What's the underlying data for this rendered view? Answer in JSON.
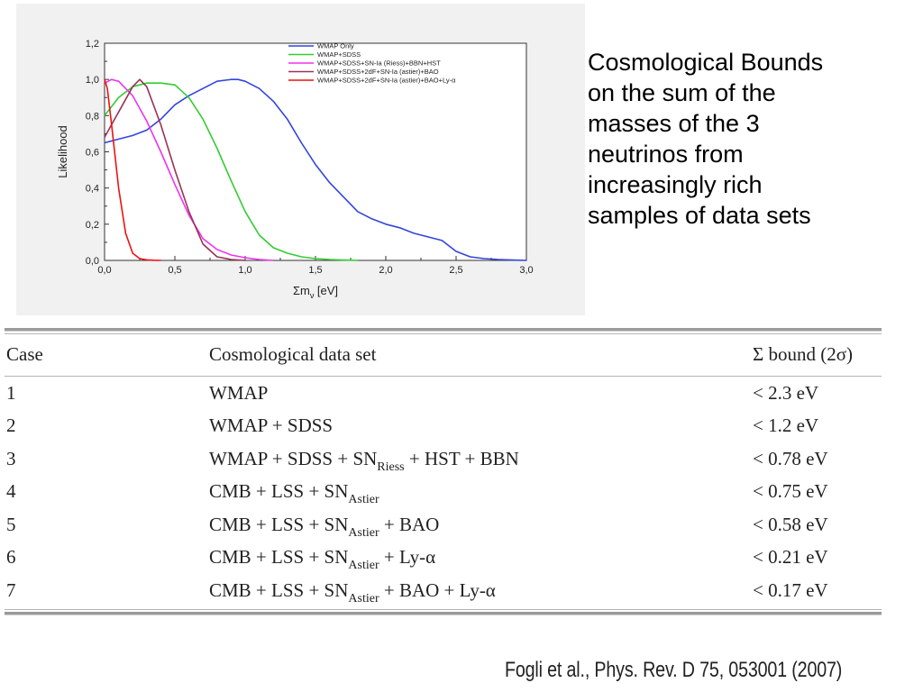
{
  "chart_data": {
    "type": "line",
    "title": "",
    "xlabel": "Σm",
    "xlabel_sub": "ν",
    "xlabel_unit": " [eV]",
    "ylabel": "Likelihood",
    "xlim": [
      0,
      3.0
    ],
    "ylim": [
      0,
      1.2
    ],
    "xticks": [
      "0,0",
      "0,5",
      "1,0",
      "1,5",
      "2,0",
      "2,5",
      "3,0"
    ],
    "xtick_values": [
      0,
      0.5,
      1.0,
      1.5,
      2.0,
      2.5,
      3.0
    ],
    "yticks": [
      "0,0",
      "0,2",
      "0,4",
      "0,6",
      "0,8",
      "1,0",
      "1,2"
    ],
    "ytick_values": [
      0,
      0.2,
      0.4,
      0.6,
      0.8,
      1.0,
      1.2
    ],
    "legend_position": "top-right",
    "grid": false,
    "series": [
      {
        "name": "WMAP Only",
        "color": "#3344dd",
        "x": [
          0,
          0.1,
          0.2,
          0.3,
          0.4,
          0.5,
          0.6,
          0.7,
          0.8,
          0.9,
          0.95,
          1.0,
          1.1,
          1.2,
          1.3,
          1.4,
          1.5,
          1.6,
          1.7,
          1.8,
          1.9,
          2.0,
          2.1,
          2.2,
          2.3,
          2.4,
          2.5,
          2.6,
          2.7,
          2.8,
          2.9,
          3.0
        ],
        "y": [
          0.65,
          0.67,
          0.69,
          0.72,
          0.78,
          0.86,
          0.91,
          0.95,
          0.99,
          1.0,
          1.0,
          0.99,
          0.95,
          0.88,
          0.78,
          0.65,
          0.53,
          0.43,
          0.35,
          0.27,
          0.23,
          0.2,
          0.18,
          0.15,
          0.13,
          0.11,
          0.05,
          0.02,
          0.01,
          0.005,
          0.002,
          0.0
        ]
      },
      {
        "name": "WMAP+SDSS",
        "color": "#33cc33",
        "x": [
          0,
          0.1,
          0.2,
          0.3,
          0.4,
          0.5,
          0.6,
          0.7,
          0.8,
          0.9,
          1.0,
          1.1,
          1.2,
          1.3,
          1.4,
          1.5,
          1.6,
          1.7,
          1.8
        ],
        "y": [
          0.8,
          0.9,
          0.96,
          0.98,
          0.98,
          0.97,
          0.9,
          0.78,
          0.62,
          0.44,
          0.27,
          0.14,
          0.07,
          0.04,
          0.02,
          0.01,
          0.005,
          0.002,
          0.0
        ]
      },
      {
        "name": "WMAP+SDSS+SN-Ia (Riess)+BBN+HST",
        "color": "#ee33ee",
        "x": [
          0,
          0.05,
          0.1,
          0.2,
          0.3,
          0.4,
          0.5,
          0.6,
          0.7,
          0.8,
          0.9,
          1.0,
          1.1,
          1.2
        ],
        "y": [
          0.98,
          1.0,
          0.99,
          0.91,
          0.77,
          0.6,
          0.42,
          0.25,
          0.12,
          0.06,
          0.03,
          0.015,
          0.005,
          0.0
        ]
      },
      {
        "name": "WMAP+SDSS+2dF+SN-Ia (astier)+BAO",
        "color": "#993355",
        "x": [
          0,
          0.1,
          0.2,
          0.25,
          0.3,
          0.4,
          0.5,
          0.6,
          0.7,
          0.8,
          0.9,
          1.0
        ],
        "y": [
          0.68,
          0.82,
          0.96,
          1.0,
          0.96,
          0.75,
          0.5,
          0.27,
          0.09,
          0.02,
          0.005,
          0.0
        ]
      },
      {
        "name": "WMAP+SDSS+2dF+SN-Ia (astier)+BAO+Ly-α",
        "color": "#ee1111",
        "x": [
          0,
          0.02,
          0.05,
          0.1,
          0.15,
          0.2,
          0.25,
          0.3,
          0.35,
          0.4
        ],
        "y": [
          1.0,
          0.95,
          0.75,
          0.4,
          0.15,
          0.04,
          0.01,
          0.003,
          0.001,
          0.0
        ]
      }
    ]
  },
  "caption": "Cosmological Bounds\non the sum of the\nmasses of the 3\nneutrinos from\nincreasingly rich\nsamples of data sets",
  "table": {
    "headers": [
      "Case",
      "Cosmological data set",
      "Σ bound (2σ)"
    ],
    "rows": [
      {
        "case": "1",
        "set": "WMAP",
        "bound": "< 2.3 eV"
      },
      {
        "case": "2",
        "set": "WMAP + SDSS",
        "bound": "< 1.2 eV"
      },
      {
        "case": "3",
        "set": "WMAP + SDSS + SN",
        "set_sub": "Riess",
        "set_post": " + HST + BBN",
        "bound": "< 0.78 eV"
      },
      {
        "case": "4",
        "set": "CMB + LSS + SN",
        "set_sub": "Astier",
        "set_post": "",
        "bound": "< 0.75 eV"
      },
      {
        "case": "5",
        "set": "CMB + LSS + SN",
        "set_sub": "Astier",
        "set_post": " + BAO",
        "bound": "< 0.58 eV"
      },
      {
        "case": "6",
        "set": "CMB + LSS + SN",
        "set_sub": "Astier",
        "set_post": " + Ly-α",
        "bound": "< 0.21 eV"
      },
      {
        "case": "7",
        "set": "CMB + LSS + SN",
        "set_sub": "Astier",
        "set_post": " + BAO + Ly-α",
        "bound": "< 0.17 eV"
      }
    ]
  },
  "citation": "Fogli et al., Phys. Rev. D 75, 053001 (2007)"
}
